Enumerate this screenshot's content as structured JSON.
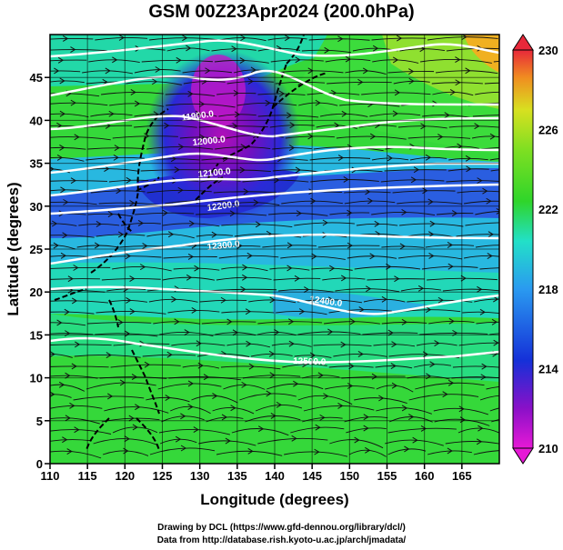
{
  "title": "GSM 00Z23Apr2024 (200.0hPa)",
  "x_axis": {
    "label": "Longitude (degrees)",
    "ticks": [
      "110",
      "115",
      "120",
      "125",
      "130",
      "135",
      "140",
      "145",
      "150",
      "155",
      "160",
      "165"
    ]
  },
  "y_axis": {
    "label": "Latitude  (degrees)",
    "ticks": [
      "0",
      "5",
      "10",
      "15",
      "20",
      "25",
      "30",
      "35",
      "40",
      "45"
    ]
  },
  "colorbar": {
    "ticks": [
      "210",
      "214",
      "218",
      "222",
      "226",
      "230"
    ],
    "colors": {
      "min": "#e619d6",
      "purple": "#8a10c8",
      "blue": "#1530d8",
      "light_blue": "#2a9af0",
      "cyan": "#22e0c8",
      "green": "#2fd52a",
      "yellow": "#d8e020",
      "orange": "#f08e20",
      "red": "#e8283a"
    }
  },
  "contour_labels": [
    "11900.0",
    "12000.0",
    "12100.0",
    "12200.0",
    "12300.0",
    "12400.0",
    "12500.0"
  ],
  "footer": {
    "line1": "Drawing by DCL (https://www.gfd-dennou.org/library/dcl/)",
    "line2": "Data from http://database.rish.kyoto-u.ac.jp/arch/jmadata/"
  },
  "map_meta": {
    "lon_range": [
      110,
      170
    ],
    "lat_range": [
      0,
      50
    ],
    "variable": "temperature (K) with geopotential height contours and wind streamlines",
    "colormap_range": [
      210,
      230
    ]
  }
}
